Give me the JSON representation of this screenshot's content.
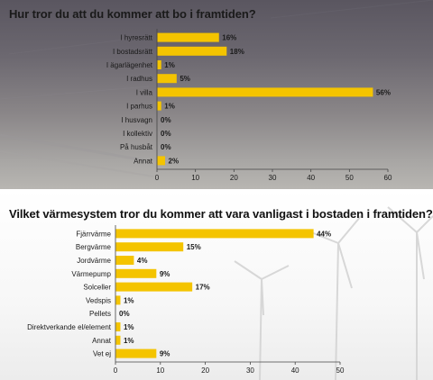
{
  "colors": {
    "bar": "#f4c400"
  },
  "chart_data": [
    {
      "type": "bar",
      "orientation": "horizontal",
      "title": "Hur tror du att du kommer att bo i framtiden?",
      "categories": [
        "I hyresrätt",
        "I bostadsrätt",
        "I ägarlägenhet",
        "I radhus",
        "I villa",
        "I parhus",
        "I husvagn",
        "I kollektiv",
        "På husbåt",
        "Annat"
      ],
      "values": [
        16,
        18,
        1,
        5,
        56,
        1,
        0,
        0,
        0,
        2
      ],
      "value_labels": [
        "16%",
        "18%",
        "1%",
        "5%",
        "56%",
        "1%",
        "0%",
        "0%",
        "0%",
        "2%"
      ],
      "xlim": [
        0,
        60
      ],
      "ticks": [
        0,
        10,
        20,
        30,
        40,
        50,
        60
      ],
      "tick_labels": [
        "0",
        "10",
        "20",
        "30",
        "40",
        "50",
        "60"
      ],
      "grid": false,
      "legend": "none"
    },
    {
      "type": "bar",
      "orientation": "horizontal",
      "title": "Vilket värmesystem tror du kommer att vara vanligast i bostaden i framtiden?",
      "categories": [
        "Fjärrvärme",
        "Bergvärme",
        "Jordvärme",
        "Värmepump",
        "Solceller",
        "Vedspis",
        "Pellets",
        "Direktverkande el/element",
        "Annat",
        "Vet ej"
      ],
      "values": [
        44,
        15,
        4,
        9,
        17,
        1,
        0,
        1,
        1,
        9
      ],
      "value_labels": [
        "44%",
        "15%",
        "4%",
        "9%",
        "17%",
        "1%",
        "0%",
        "1%",
        "1%",
        "9%"
      ],
      "xlim": [
        0,
        50
      ],
      "ticks": [
        0,
        10,
        20,
        30,
        40,
        50
      ],
      "tick_labels": [
        "0",
        "10",
        "20",
        "30",
        "40",
        "50"
      ],
      "grid": false,
      "legend": "none"
    }
  ]
}
